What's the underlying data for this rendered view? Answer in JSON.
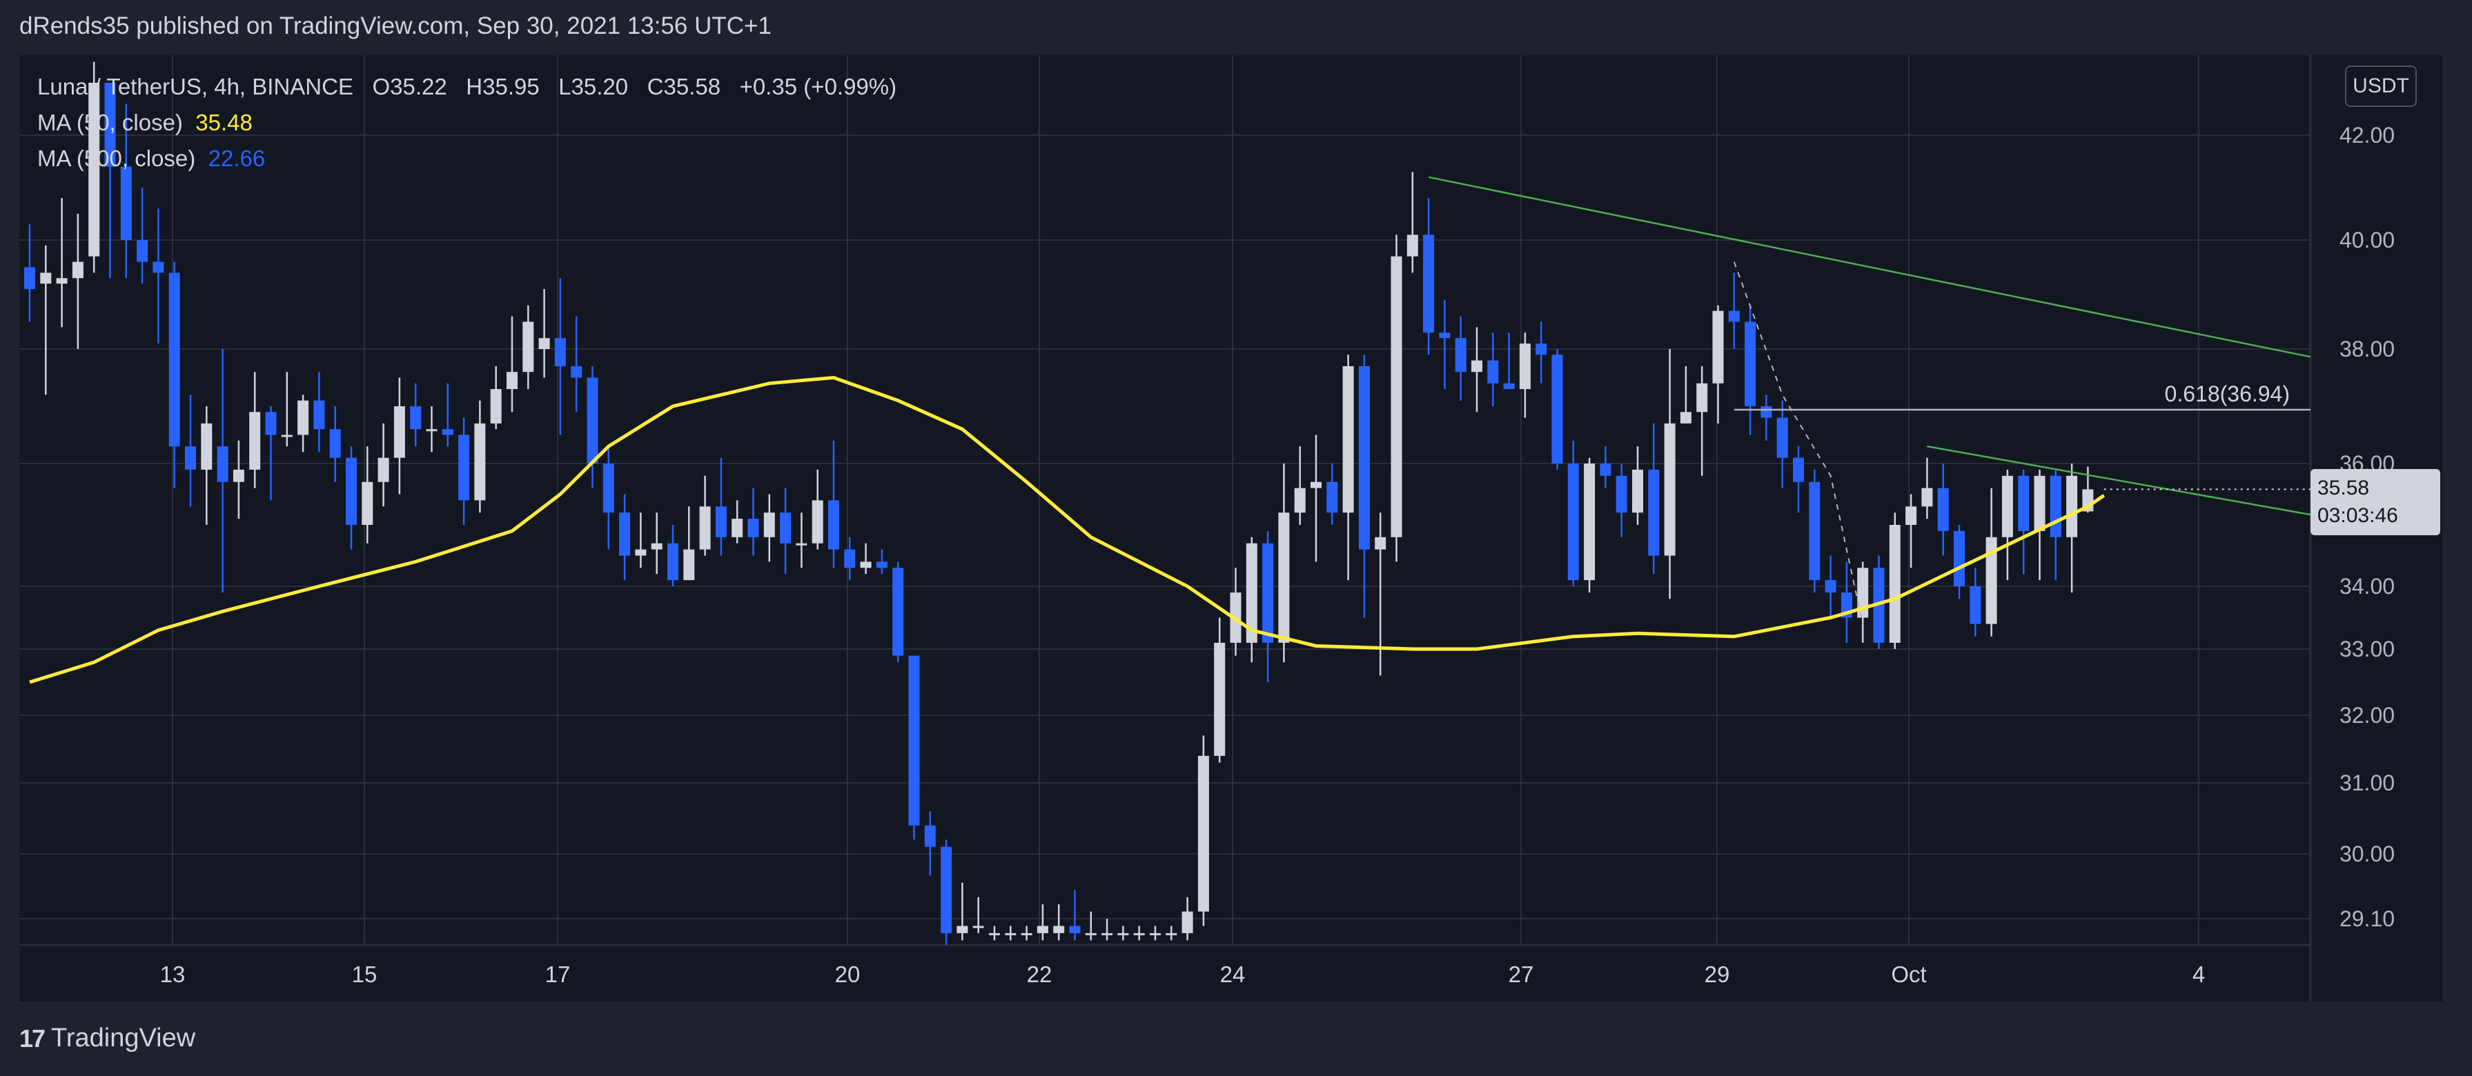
{
  "header": {
    "published": "dRends35 published on TradingView.com, Sep 30, 2021 13:56 UTC+1"
  },
  "legend": {
    "symbol": "Luna / TetherUS, 4h, BINANCE",
    "o_label": "O",
    "o": "35.22",
    "h_label": "H",
    "h": "35.95",
    "l_label": "L",
    "l": "35.20",
    "c_label": "C",
    "c": "35.58",
    "change": "+0.35 (+0.99%)",
    "ma1_label": "MA (50, close)",
    "ma1_value": "35.48",
    "ma2_label": "MA (500, close)",
    "ma2_value": "22.66"
  },
  "currency_button": "USDT",
  "price_tag": {
    "price": "35.58",
    "countdown": "03:03:46"
  },
  "fib_label": "0.618(36.94)",
  "footer": {
    "brand": "TradingView"
  },
  "colors": {
    "bg": "#131722",
    "up": "#d1d4dc",
    "down": "#2962ff",
    "ma50": "#ffeb3b",
    "trend": "#4caf50",
    "grid": "#2a2e39"
  },
  "chart_data": {
    "type": "candlestick",
    "symbol": "LUNA/USDT",
    "x_tick_labels": [
      "13",
      "15",
      "17",
      "20",
      "22",
      "24",
      "27",
      "29",
      "Oct",
      "4"
    ],
    "y_tick_labels": [
      "42.00",
      "40.00",
      "38.00",
      "36.00",
      "34.00",
      "33.00",
      "32.00",
      "31.00",
      "30.00",
      "29.10"
    ],
    "y_ticks": [
      42,
      40,
      38,
      36,
      34,
      33,
      32,
      31,
      30,
      29.1
    ],
    "ylim": [
      28.9,
      43.1
    ],
    "grid": true,
    "candles": [
      [
        39.5,
        39.1,
        40.3,
        38.5
      ],
      [
        39.2,
        39.4,
        39.9,
        37.2
      ],
      [
        39.2,
        39.3,
        40.8,
        38.4
      ],
      [
        39.3,
        39.6,
        40.5,
        38.0
      ],
      [
        39.7,
        43.0,
        43.4,
        39.4
      ],
      [
        43.0,
        41.4,
        42.6,
        39.3
      ],
      [
        41.4,
        40.0,
        42.6,
        39.3
      ],
      [
        40.0,
        39.6,
        41.0,
        39.2
      ],
      [
        39.6,
        39.4,
        40.6,
        38.1
      ],
      [
        39.4,
        36.3,
        39.6,
        35.6
      ],
      [
        36.3,
        35.9,
        37.2,
        35.3
      ],
      [
        35.9,
        36.7,
        37.0,
        35.0
      ],
      [
        36.3,
        35.7,
        38.0,
        33.9
      ],
      [
        35.7,
        35.9,
        36.4,
        35.1
      ],
      [
        35.9,
        36.9,
        37.6,
        35.6
      ],
      [
        36.9,
        36.5,
        37.0,
        35.4
      ],
      [
        36.5,
        36.5,
        37.6,
        36.3
      ],
      [
        36.5,
        37.1,
        37.2,
        36.2
      ],
      [
        37.1,
        36.6,
        37.6,
        36.2
      ],
      [
        36.6,
        36.1,
        37.0,
        35.7
      ],
      [
        36.1,
        35.0,
        36.3,
        34.6
      ],
      [
        35.0,
        35.7,
        36.3,
        34.7
      ],
      [
        35.7,
        36.1,
        36.7,
        35.3
      ],
      [
        36.1,
        37.0,
        37.5,
        35.5
      ],
      [
        37.0,
        36.6,
        37.4,
        36.3
      ],
      [
        36.6,
        36.6,
        37.0,
        36.2
      ],
      [
        36.6,
        36.5,
        37.4,
        36.3
      ],
      [
        36.5,
        35.4,
        36.8,
        35.0
      ],
      [
        35.4,
        36.7,
        37.1,
        35.2
      ],
      [
        36.7,
        37.3,
        37.7,
        36.6
      ],
      [
        37.3,
        37.6,
        38.6,
        36.9
      ],
      [
        37.6,
        38.5,
        38.8,
        37.3
      ],
      [
        38.0,
        38.2,
        39.1,
        37.5
      ],
      [
        38.2,
        37.7,
        39.3,
        36.5
      ],
      [
        37.7,
        37.5,
        38.6,
        36.9
      ],
      [
        37.5,
        36.0,
        37.7,
        35.6
      ],
      [
        36.0,
        35.2,
        36.3,
        34.6
      ],
      [
        35.2,
        34.5,
        35.5,
        34.1
      ],
      [
        34.5,
        34.6,
        35.2,
        34.3
      ],
      [
        34.6,
        34.7,
        35.2,
        34.2
      ],
      [
        34.7,
        34.1,
        35.0,
        34.0
      ],
      [
        34.1,
        34.6,
        35.3,
        34.1
      ],
      [
        34.6,
        35.3,
        35.8,
        34.5
      ],
      [
        35.3,
        34.8,
        36.1,
        34.5
      ],
      [
        34.8,
        35.1,
        35.4,
        34.7
      ],
      [
        35.1,
        34.8,
        35.6,
        34.5
      ],
      [
        34.8,
        35.2,
        35.5,
        34.4
      ],
      [
        35.2,
        34.7,
        35.6,
        34.2
      ],
      [
        34.7,
        34.7,
        35.2,
        34.3
      ],
      [
        34.7,
        35.4,
        35.9,
        34.6
      ],
      [
        35.4,
        34.6,
        36.4,
        34.3
      ],
      [
        34.6,
        34.3,
        34.8,
        34.1
      ],
      [
        34.3,
        34.4,
        34.7,
        34.2
      ],
      [
        34.4,
        34.3,
        34.6,
        34.2
      ],
      [
        34.3,
        32.9,
        34.4,
        32.8
      ],
      [
        32.9,
        30.4,
        32.9,
        30.2
      ],
      [
        30.4,
        30.1,
        30.6,
        29.7
      ],
      [
        30.1,
        28.9,
        30.2,
        28.6
      ],
      [
        28.9,
        29.0,
        29.6,
        28.8
      ],
      [
        29.0,
        29.0,
        29.4,
        28.9
      ],
      [
        28.9,
        28.9,
        29.0,
        28.8
      ],
      [
        28.9,
        28.9,
        29.0,
        28.8
      ],
      [
        28.9,
        28.9,
        29.0,
        28.8
      ],
      [
        28.9,
        29.0,
        29.3,
        28.8
      ],
      [
        28.9,
        29.0,
        29.3,
        28.8
      ],
      [
        29.0,
        28.9,
        29.5,
        28.8
      ],
      [
        28.9,
        28.9,
        29.2,
        28.8
      ],
      [
        28.9,
        28.9,
        29.1,
        28.8
      ],
      [
        28.9,
        28.9,
        29.0,
        28.8
      ],
      [
        28.9,
        28.9,
        29.0,
        28.8
      ],
      [
        28.9,
        28.9,
        29.0,
        28.8
      ],
      [
        28.9,
        28.9,
        29.0,
        28.8
      ],
      [
        28.9,
        29.2,
        29.4,
        28.8
      ],
      [
        29.2,
        31.4,
        31.7,
        29.0
      ],
      [
        31.4,
        33.1,
        33.5,
        31.3
      ],
      [
        33.1,
        33.9,
        34.3,
        32.9
      ],
      [
        33.1,
        34.7,
        34.8,
        32.8
      ],
      [
        34.7,
        33.1,
        34.9,
        32.5
      ],
      [
        33.1,
        35.2,
        36.0,
        32.8
      ],
      [
        35.2,
        35.6,
        36.3,
        35.0
      ],
      [
        35.6,
        35.7,
        36.5,
        34.4
      ],
      [
        35.7,
        35.2,
        36.0,
        35.0
      ],
      [
        35.2,
        37.7,
        37.9,
        34.1
      ],
      [
        37.7,
        34.6,
        37.9,
        33.5
      ],
      [
        34.6,
        34.8,
        35.2,
        32.6
      ],
      [
        34.8,
        39.7,
        40.1,
        34.4
      ],
      [
        39.7,
        40.1,
        41.3,
        39.4
      ],
      [
        40.1,
        38.3,
        40.8,
        37.9
      ],
      [
        38.3,
        38.2,
        38.9,
        37.3
      ],
      [
        38.2,
        37.6,
        38.6,
        37.1
      ],
      [
        37.6,
        37.8,
        38.4,
        36.9
      ],
      [
        37.8,
        37.4,
        38.3,
        37.0
      ],
      [
        37.4,
        37.3,
        38.3,
        37.3
      ],
      [
        37.3,
        38.1,
        38.3,
        36.8
      ],
      [
        38.1,
        37.9,
        38.5,
        37.4
      ],
      [
        37.9,
        36.0,
        38.0,
        35.9
      ],
      [
        36.0,
        34.1,
        36.4,
        34.0
      ],
      [
        34.1,
        36.0,
        36.1,
        33.9
      ],
      [
        36.0,
        35.8,
        36.3,
        35.6
      ],
      [
        35.8,
        35.2,
        36.0,
        34.8
      ],
      [
        35.2,
        35.9,
        36.3,
        35.0
      ],
      [
        35.9,
        34.5,
        36.7,
        34.2
      ],
      [
        34.5,
        36.7,
        38.0,
        33.8
      ],
      [
        36.7,
        36.9,
        37.7,
        36.7
      ],
      [
        36.9,
        37.4,
        37.7,
        35.8
      ],
      [
        37.4,
        38.7,
        38.8,
        36.7
      ],
      [
        38.7,
        38.5,
        39.4,
        38.0
      ],
      [
        38.5,
        37.0,
        38.8,
        36.5
      ],
      [
        37.0,
        36.8,
        37.2,
        36.4
      ],
      [
        36.8,
        36.1,
        37.1,
        35.6
      ],
      [
        36.1,
        35.7,
        36.3,
        35.2
      ],
      [
        35.7,
        34.1,
        35.9,
        33.9
      ],
      [
        34.1,
        33.9,
        34.5,
        33.5
      ],
      [
        33.9,
        33.5,
        34.4,
        33.1
      ],
      [
        33.5,
        34.3,
        34.4,
        33.1
      ],
      [
        34.3,
        33.1,
        34.5,
        33.0
      ],
      [
        33.1,
        35.0,
        35.2,
        33.0
      ],
      [
        35.0,
        35.3,
        35.5,
        34.3
      ],
      [
        35.3,
        35.6,
        36.1,
        35.1
      ],
      [
        35.6,
        34.9,
        36.0,
        34.5
      ],
      [
        34.9,
        34.0,
        35.0,
        33.8
      ],
      [
        34.0,
        33.4,
        34.3,
        33.2
      ],
      [
        33.4,
        34.8,
        35.6,
        33.2
      ],
      [
        34.8,
        35.8,
        35.9,
        34.1
      ],
      [
        35.8,
        34.9,
        35.9,
        34.2
      ],
      [
        34.9,
        35.8,
        35.9,
        34.1
      ],
      [
        35.8,
        34.8,
        35.9,
        34.1
      ],
      [
        34.8,
        35.8,
        36.0,
        33.9
      ],
      [
        35.22,
        35.58,
        35.95,
        35.2
      ]
    ],
    "ma50": [
      [
        0,
        32.5
      ],
      [
        4,
        32.8
      ],
      [
        8,
        33.3
      ],
      [
        12,
        33.6
      ],
      [
        18,
        34.0
      ],
      [
        24,
        34.4
      ],
      [
        30,
        34.9
      ],
      [
        33,
        35.5
      ],
      [
        36,
        36.3
      ],
      [
        40,
        37.0
      ],
      [
        46,
        37.4
      ],
      [
        50,
        37.5
      ],
      [
        54,
        37.1
      ],
      [
        58,
        36.6
      ],
      [
        62,
        35.7
      ],
      [
        66,
        34.8
      ],
      [
        72,
        34.0
      ],
      [
        76,
        33.3
      ],
      [
        80,
        33.05
      ],
      [
        86,
        33.0
      ],
      [
        90,
        33.0
      ],
      [
        96,
        33.2
      ],
      [
        100,
        33.25
      ],
      [
        106,
        33.2
      ],
      [
        112,
        33.5
      ],
      [
        116,
        33.8
      ],
      [
        120,
        34.3
      ],
      [
        124,
        34.8
      ],
      [
        128,
        35.3
      ],
      [
        129,
        35.48
      ]
    ],
    "trendlines": [
      {
        "from": [
          87,
          41.2
        ],
        "to": [
          180,
          35.7
        ],
        "color": "#4caf50"
      },
      {
        "from": [
          118,
          36.3
        ],
        "to": [
          180,
          33.4
        ],
        "color": "#4caf50"
      }
    ],
    "fib_level": {
      "label": "0.618(36.94)",
      "value": 36.94,
      "from_x": 106
    },
    "last_price": 35.58
  }
}
